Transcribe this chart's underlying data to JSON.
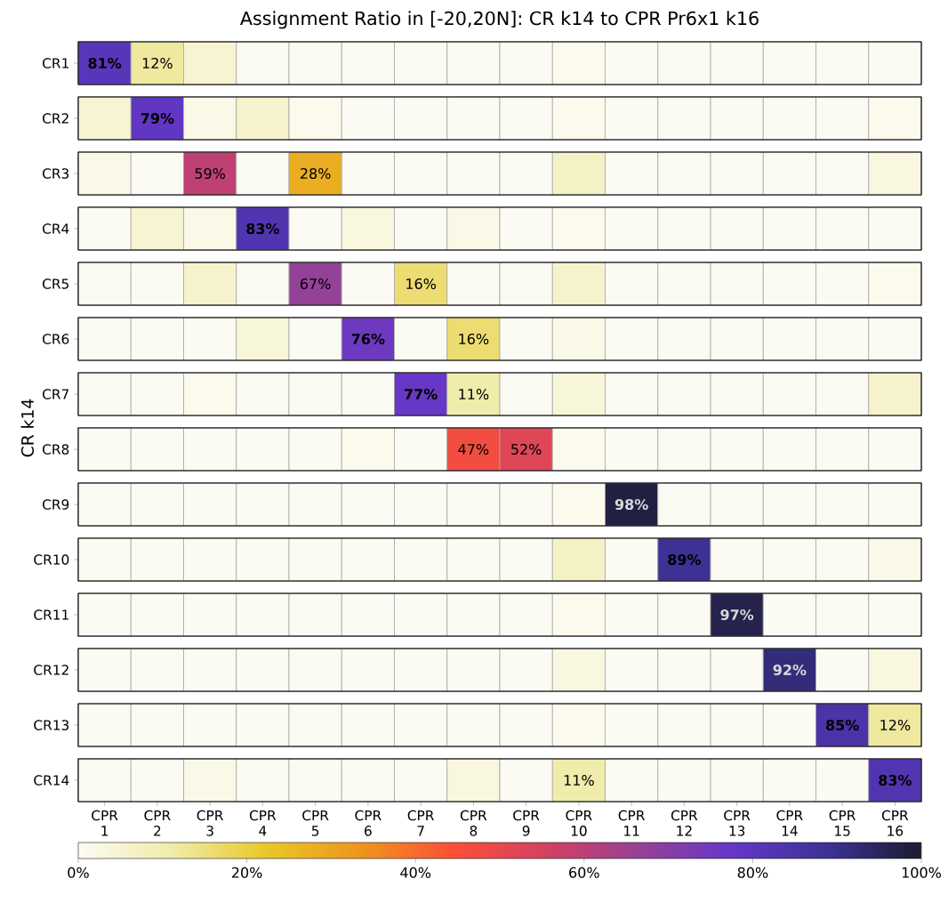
{
  "chart_data": {
    "type": "heatmap",
    "title": "Assignment Ratio in [-20,20N]: CR k14 to CPR Pr6x1 k16",
    "ylabel": "CR k14",
    "categories": [
      "CPR 1",
      "CPR 2",
      "CPR 3",
      "CPR 4",
      "CPR 5",
      "CPR 6",
      "CPR 7",
      "CPR 8",
      "CPR 9",
      "CPR 10",
      "CPR 11",
      "CPR 12",
      "CPR 13",
      "CPR 14",
      "CPR 15",
      "CPR 16"
    ],
    "y_categories": [
      "CR1",
      "CR2",
      "CR3",
      "CR4",
      "CR5",
      "CR6",
      "CR7",
      "CR8",
      "CR9",
      "CR10",
      "CR11",
      "CR12",
      "CR13",
      "CR14"
    ],
    "cells": [
      [
        81,
        12,
        5,
        0,
        0,
        0,
        0,
        0,
        0,
        1,
        0,
        0,
        0,
        0,
        0,
        0
      ],
      [
        5,
        79,
        2,
        6,
        1,
        0,
        0,
        0,
        0,
        1,
        0,
        0,
        0,
        0,
        0,
        1
      ],
      [
        2,
        0,
        59,
        0,
        28,
        0,
        0,
        0,
        0,
        7,
        0,
        0,
        0,
        0,
        0,
        3
      ],
      [
        0,
        5,
        2,
        83,
        0,
        3,
        0,
        2,
        0,
        1,
        0,
        0,
        0,
        0,
        0,
        0
      ],
      [
        0,
        0,
        6,
        0,
        67,
        0,
        16,
        0,
        0,
        6,
        0,
        0,
        0,
        0,
        0,
        1
      ],
      [
        0,
        0,
        0,
        4,
        0,
        76,
        0,
        16,
        0,
        2,
        0,
        0,
        0,
        0,
        0,
        0
      ],
      [
        0,
        0,
        1,
        0,
        0,
        0,
        77,
        11,
        0,
        4,
        0,
        0,
        0,
        0,
        0,
        6
      ],
      [
        0,
        0,
        0,
        0,
        0,
        1,
        0,
        47,
        52,
        1,
        0,
        0,
        0,
        0,
        0,
        0
      ],
      [
        0,
        0,
        0,
        0,
        0,
        0,
        0,
        0,
        0,
        1,
        98,
        0,
        0,
        0,
        0,
        0
      ],
      [
        0,
        0,
        0,
        0,
        0,
        0,
        0,
        0,
        0,
        7,
        0,
        89,
        0,
        0,
        0,
        2
      ],
      [
        0,
        0,
        0,
        0,
        0,
        0,
        0,
        0,
        0,
        1,
        0,
        0,
        97,
        0,
        0,
        0
      ],
      [
        0,
        0,
        0,
        0,
        0,
        0,
        0,
        0,
        0,
        3,
        0,
        0,
        0,
        92,
        0,
        3
      ],
      [
        0,
        0,
        0,
        0,
        0,
        0,
        0,
        0,
        0,
        1,
        0,
        0,
        0,
        0,
        85,
        12
      ],
      [
        0,
        0,
        2,
        0,
        0,
        0,
        0,
        3,
        0,
        11,
        0,
        0,
        0,
        0,
        0,
        83
      ]
    ],
    "cell_labels": [
      [
        "81%",
        "12%",
        null,
        null,
        null,
        null,
        null,
        null,
        null,
        null,
        null,
        null,
        null,
        null,
        null,
        null
      ],
      [
        null,
        "79%",
        null,
        null,
        null,
        null,
        null,
        null,
        null,
        null,
        null,
        null,
        null,
        null,
        null,
        null
      ],
      [
        null,
        null,
        "59%",
        null,
        "28%",
        null,
        null,
        null,
        null,
        null,
        null,
        null,
        null,
        null,
        null,
        null
      ],
      [
        null,
        null,
        null,
        "83%",
        null,
        null,
        null,
        null,
        null,
        null,
        null,
        null,
        null,
        null,
        null,
        null
      ],
      [
        null,
        null,
        null,
        null,
        "67%",
        null,
        "16%",
        null,
        null,
        null,
        null,
        null,
        null,
        null,
        null,
        null
      ],
      [
        null,
        null,
        null,
        null,
        null,
        "76%",
        null,
        "16%",
        null,
        null,
        null,
        null,
        null,
        null,
        null,
        null
      ],
      [
        null,
        null,
        null,
        null,
        null,
        null,
        "77%",
        "11%",
        null,
        null,
        null,
        null,
        null,
        null,
        null,
        null
      ],
      [
        null,
        null,
        null,
        null,
        null,
        null,
        null,
        "47%",
        "52%",
        null,
        null,
        null,
        null,
        null,
        null,
        null
      ],
      [
        null,
        null,
        null,
        null,
        null,
        null,
        null,
        null,
        null,
        null,
        "98%",
        null,
        null,
        null,
        null,
        null
      ],
      [
        null,
        null,
        null,
        null,
        null,
        null,
        null,
        null,
        null,
        null,
        null,
        "89%",
        null,
        null,
        null,
        null
      ],
      [
        null,
        null,
        null,
        null,
        null,
        null,
        null,
        null,
        null,
        null,
        null,
        null,
        "97%",
        null,
        null,
        null
      ],
      [
        null,
        null,
        null,
        null,
        null,
        null,
        null,
        null,
        null,
        null,
        null,
        null,
        null,
        "92%",
        null,
        null
      ],
      [
        null,
        null,
        null,
        null,
        null,
        null,
        null,
        null,
        null,
        null,
        null,
        null,
        null,
        null,
        "85%",
        "12%"
      ],
      [
        null,
        null,
        null,
        null,
        null,
        null,
        null,
        null,
        null,
        "11%",
        null,
        null,
        null,
        null,
        null,
        "83%"
      ]
    ],
    "clim": [
      0,
      100
    ],
    "cticks": [
      {
        "value": 0,
        "label": "0%"
      },
      {
        "value": 20,
        "label": "20%"
      },
      {
        "value": 40,
        "label": "40%"
      },
      {
        "value": 60,
        "label": "60%"
      },
      {
        "value": 80,
        "label": "80%"
      },
      {
        "value": 100,
        "label": "100%"
      }
    ]
  }
}
